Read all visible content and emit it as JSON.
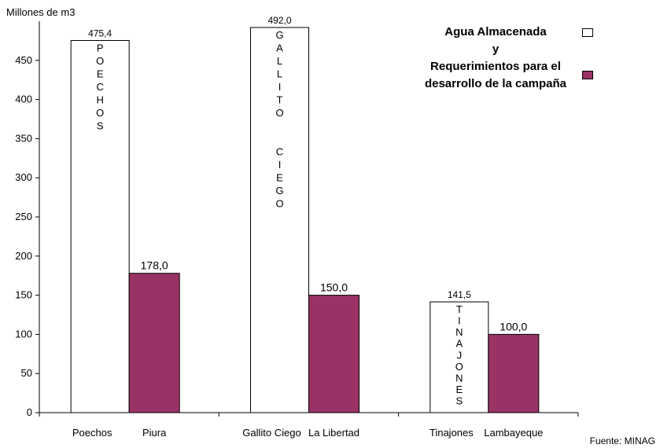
{
  "chart_data": {
    "type": "bar",
    "y_label": "Millones de m3",
    "source": "Fuente: MINAG",
    "legend_joiner": "y",
    "categories": [
      "Poechos",
      "Piura",
      "Gallito Ciego",
      "La Libertad",
      "Tinajones",
      "Lambayeque"
    ],
    "bar_annotations": [
      "POECHOS",
      null,
      "GALLITO  CIEGO",
      null,
      "TINAJONES",
      null
    ],
    "series": [
      {
        "name": "Agua Almacenada",
        "color": "#ffffff",
        "values": [
          475.4,
          null,
          492.0,
          null,
          141.5,
          null
        ],
        "value_labels": [
          "475,4",
          null,
          "492,0",
          null,
          "141,5",
          null
        ]
      },
      {
        "name": "Requerimientos para el desarrollo de la campaña",
        "color": "#993366",
        "values": [
          null,
          178.0,
          null,
          150.0,
          null,
          100.0
        ],
        "value_labels": [
          null,
          "178,0",
          null,
          "150,0",
          null,
          "100,0"
        ]
      }
    ],
    "ylim": [
      0,
      500
    ],
    "yticks": [
      0,
      50,
      100,
      150,
      200,
      250,
      300,
      350,
      400,
      450
    ]
  }
}
